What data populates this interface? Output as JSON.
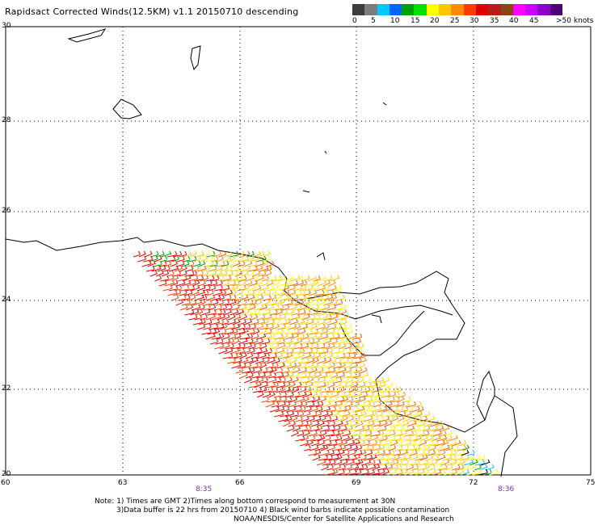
{
  "header": {
    "title": "Rapidsact Corrected Winds(12.5KM) v1.1 20150710 descending"
  },
  "colorbar": {
    "colors": [
      "#3c3c3c",
      "#7c7c7c",
      "#00c8ff",
      "#0064ff",
      "#00a000",
      "#00e000",
      "#ffff00",
      "#ffc800",
      "#ff8c00",
      "#ff3c00",
      "#dc0000",
      "#b41e1e",
      "#8c4614",
      "#ff00ff",
      "#c800ff",
      "#8c00c8",
      "#500078"
    ],
    "labels": [
      "0",
      "5",
      "10",
      "15",
      "20",
      "25",
      "30",
      "35",
      "40",
      "45",
      ">50 knots"
    ]
  },
  "axes": {
    "x_ticks": [
      "60",
      "63",
      "66",
      "69",
      "72",
      "75"
    ],
    "y_ticks": [
      "30",
      "28",
      "26",
      "24",
      "22",
      "20"
    ]
  },
  "swath_times": [
    "8:35",
    "8:36"
  ],
  "notes": [
    "Note: 1) Times are GMT 2)Times along bottom correspond to measurement at 30N",
    "3)Data buffer is 22 hrs from 20150710 4) Black wind barbs indicate possible contamination",
    "NOAA/NESDIS/Center for Satellite Applications and Research"
  ]
}
